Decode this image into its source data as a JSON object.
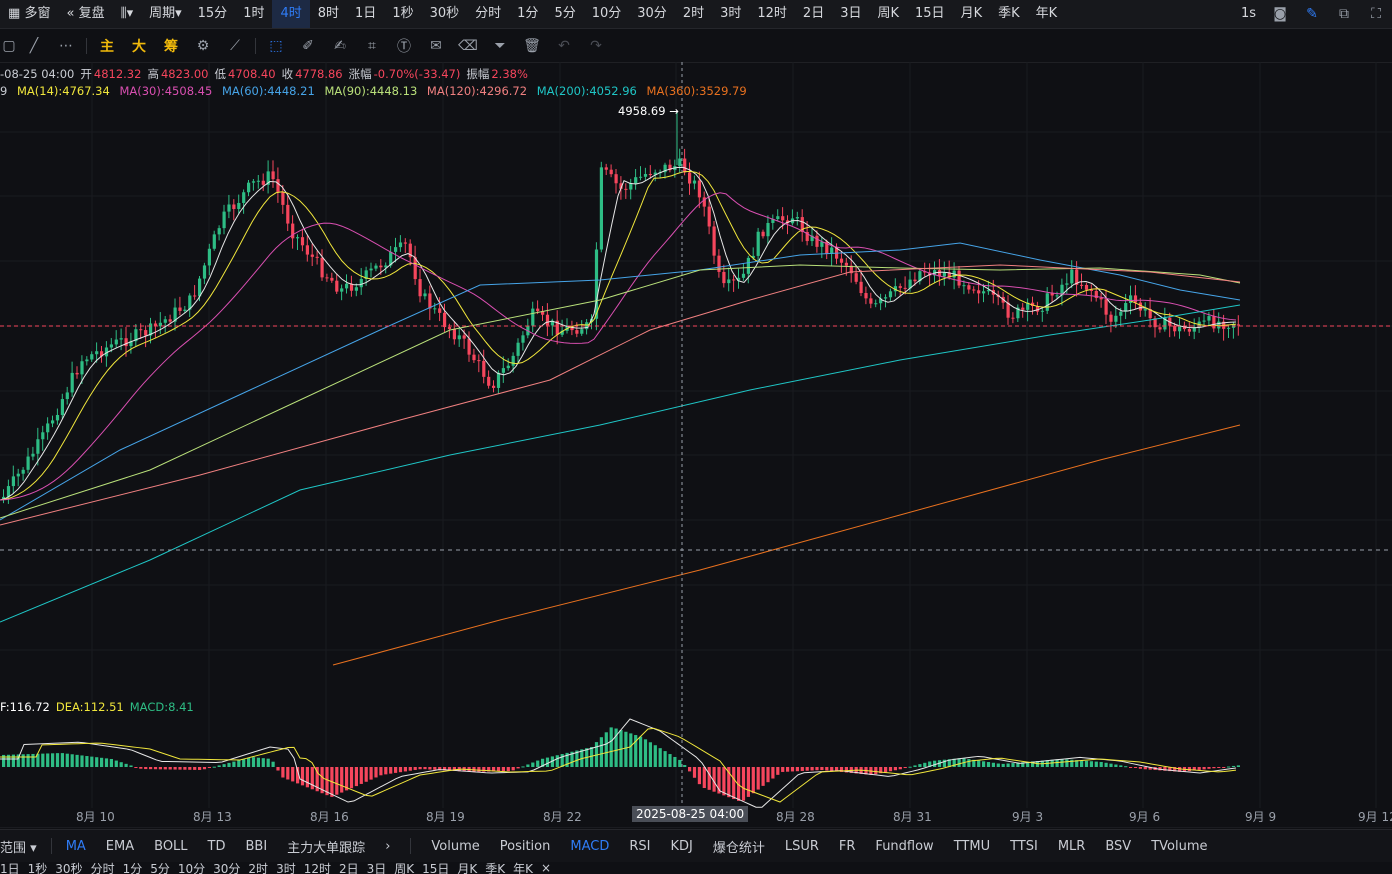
{
  "topbar": {
    "items": [
      "多窗",
      "复盘",
      "周期",
      "15分",
      "1时",
      "4时",
      "8时",
      "1日",
      "1秒",
      "30秒",
      "分时",
      "1分",
      "5分",
      "10分",
      "30分",
      "2时",
      "3时",
      "12时",
      "2日",
      "3日",
      "周K",
      "15日",
      "月K",
      "季K",
      "年K"
    ],
    "active": "4时",
    "right": [
      "1s"
    ]
  },
  "toolbar": {
    "zh": [
      "主",
      "大",
      "筹"
    ]
  },
  "ohlc": {
    "date": "-08-25 04:00",
    "open_label": "开",
    "open": "4812.32",
    "high_label": "高",
    "high": "4823.00",
    "low_label": "低",
    "low": "4708.40",
    "close_label": "收",
    "close": "4778.86",
    "change_label": "涨幅",
    "change": "-0.70%(-33.47)",
    "amp_label": "振幅",
    "amp": "2.38%"
  },
  "ma": {
    "first": "9",
    "items": [
      {
        "label": "MA(14):4767.34",
        "color": "#f0e63c"
      },
      {
        "label": "MA(30):4508.45",
        "color": "#d94fb1"
      },
      {
        "label": "MA(60):4448.21",
        "color": "#46a4e8"
      },
      {
        "label": "MA(90):4448.13",
        "color": "#b9e07a"
      },
      {
        "label": "MA(120):4296.72",
        "color": "#f08080"
      },
      {
        "label": "MA(200):4052.96",
        "color": "#1fc6c6"
      },
      {
        "label": "MA(360):3529.79",
        "color": "#e8711f"
      }
    ]
  },
  "high_marker": "4958.69 →",
  "macd": {
    "dif": "F:116.72",
    "dea": "DEA:112.51",
    "macd": "MACD:8.41"
  },
  "xaxis": [
    "8月 10",
    "8月 13",
    "8月 16",
    "8月 19",
    "8月 22",
    "8月 28",
    "8月 31",
    "9月 3",
    "9月 6",
    "9月 9",
    "9月 12"
  ],
  "crosshair_label": "2025-08-25 04:00",
  "bottom_left": [
    "范围",
    "MA",
    "EMA",
    "BOLL",
    "TD",
    "BBI",
    "主力大单跟踪"
  ],
  "bottom_right": [
    "Volume",
    "Position",
    "MACD",
    "RSI",
    "KDJ",
    "爆仓统计",
    "LSUR",
    "FR",
    "Fundflow",
    "TTMU",
    "TTSI",
    "MLR",
    "BSV",
    "TVolume"
  ],
  "bottom_active": [
    "MA",
    "MACD"
  ],
  "bottom_row": [
    "1日",
    "1秒",
    "30秒",
    "分时",
    "1分",
    "5分",
    "10分",
    "30分",
    "2时",
    "3时",
    "12时",
    "2日",
    "3日",
    "周K",
    "15日",
    "月K",
    "季K",
    "年K"
  ],
  "colors": {
    "up": "#2ebd85",
    "down": "#f6465d",
    "accent": "#2f7cf6"
  }
}
